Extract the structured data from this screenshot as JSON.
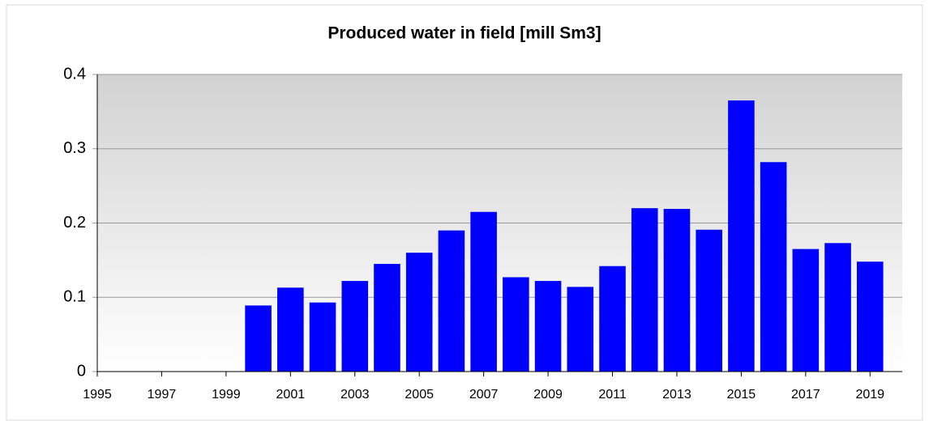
{
  "chart_data": {
    "type": "bar",
    "title": "Produced water in field [mill Sm3]",
    "x": [
      2000,
      2001,
      2002,
      2003,
      2004,
      2005,
      2006,
      2007,
      2008,
      2009,
      2010,
      2011,
      2012,
      2013,
      2014,
      2015,
      2016,
      2017,
      2018,
      2019
    ],
    "values": [
      0.089,
      0.113,
      0.093,
      0.122,
      0.145,
      0.16,
      0.19,
      0.215,
      0.127,
      0.122,
      0.114,
      0.142,
      0.22,
      0.219,
      0.191,
      0.365,
      0.282,
      0.165,
      0.173,
      0.148
    ],
    "color": "#0000ff",
    "xlim": [
      1995,
      2020
    ],
    "xticks": [
      1995,
      1997,
      1999,
      2001,
      2003,
      2005,
      2007,
      2009,
      2011,
      2013,
      2015,
      2017,
      2019
    ],
    "ylim": [
      0,
      0.4
    ],
    "yticks": [
      0,
      0.1,
      0.2,
      0.3,
      0.4
    ],
    "grid": true
  }
}
